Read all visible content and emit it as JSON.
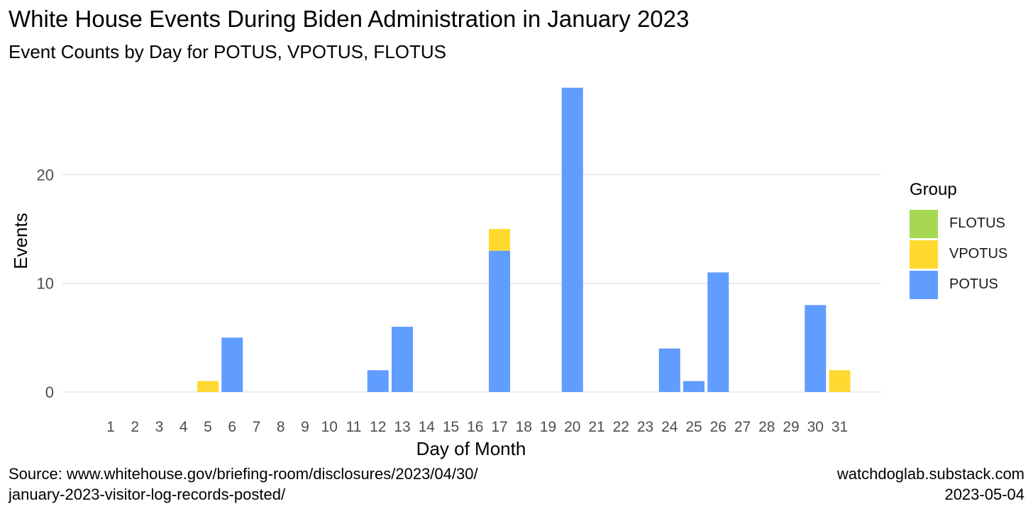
{
  "chart_data": {
    "type": "bar",
    "stacked": true,
    "title": "White House Events During Biden Administration in January 2023",
    "subtitle": "Event Counts by Day for POTUS, VPOTUS, FLOTUS",
    "xlabel": "Day of Month",
    "ylabel": "Events",
    "categories": [
      "1",
      "2",
      "3",
      "4",
      "5",
      "6",
      "7",
      "8",
      "9",
      "10",
      "11",
      "12",
      "13",
      "14",
      "15",
      "16",
      "17",
      "18",
      "19",
      "20",
      "21",
      "22",
      "23",
      "24",
      "25",
      "26",
      "27",
      "28",
      "29",
      "30",
      "31"
    ],
    "y_ticks": [
      0,
      10,
      20
    ],
    "ylim": [
      0,
      28
    ],
    "grid": true,
    "legend_title": "Group",
    "legend_position": "right",
    "legend_order": [
      "FLOTUS",
      "VPOTUS",
      "POTUS"
    ],
    "series": [
      {
        "name": "POTUS",
        "color": "#619CFF",
        "values": [
          0,
          0,
          0,
          0,
          0,
          5,
          0,
          0,
          0,
          0,
          0,
          2,
          6,
          0,
          0,
          0,
          13,
          0,
          0,
          28,
          0,
          0,
          0,
          4,
          1,
          11,
          0,
          0,
          0,
          8,
          0
        ]
      },
      {
        "name": "VPOTUS",
        "color": "#FFD92F",
        "values": [
          0,
          0,
          0,
          0,
          1,
          0,
          0,
          0,
          0,
          0,
          0,
          0,
          0,
          0,
          0,
          0,
          2,
          0,
          0,
          0,
          0,
          0,
          0,
          0,
          0,
          0,
          0,
          0,
          0,
          0,
          2
        ]
      },
      {
        "name": "FLOTUS",
        "color": "#A6D854",
        "values": [
          0,
          0,
          0,
          0,
          0,
          0,
          0,
          0,
          0,
          0,
          0,
          0,
          0,
          0,
          0,
          0,
          0,
          0,
          0,
          0,
          0,
          0,
          0,
          0,
          0,
          0,
          0,
          0,
          0,
          0,
          0
        ]
      }
    ]
  },
  "caption": {
    "source_line1": "Source: www.whitehouse.gov/briefing-room/disclosures/2023/04/30/",
    "source_line2": "january-2023-visitor-log-records-posted/",
    "site": "watchdoglab.substack.com",
    "date": "2023-05-04"
  }
}
